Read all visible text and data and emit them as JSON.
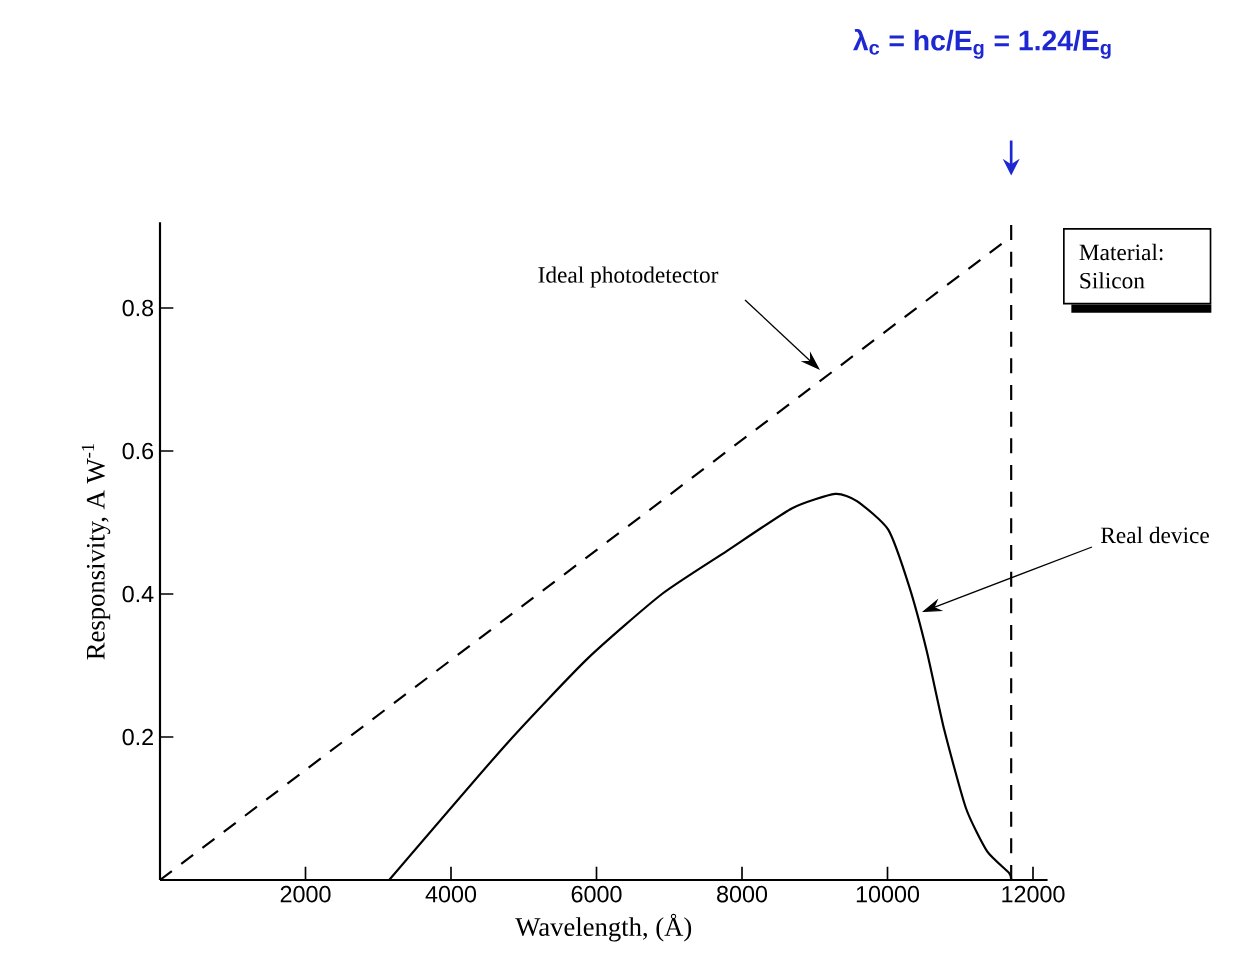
{
  "chart_data": {
    "type": "line",
    "xlabel": "Wavelength, (Å)",
    "ylabel": "Responsivity, A W$^{-1}$",
    "xlim": [
      0,
      12200
    ],
    "ylim": [
      0,
      0.92
    ],
    "xticks": [
      2000,
      4000,
      6000,
      8000,
      10000,
      12000
    ],
    "yticks": [
      0.2,
      0.4,
      0.6,
      0.8
    ],
    "series": [
      {
        "color": "#000000",
        "line_style": "dashed",
        "x": [
          0,
          11700
        ],
        "values": [
          0,
          0.9
        ]
      },
      {
        "color": "#000000",
        "line_style": "solid",
        "x": [
          3150,
          4760,
          5880,
          6900,
          7790,
          8690,
          9280,
          9580,
          10010,
          10300,
          10540,
          10780,
          11080,
          11370,
          11670,
          11700
        ],
        "values": [
          0,
          0.19,
          0.31,
          0.4,
          0.46,
          0.52,
          0.54,
          0.53,
          0.49,
          0.41,
          0.32,
          0.21,
          0.1,
          0.04,
          0.01,
          0
        ]
      }
    ],
    "ref_lines": [
      {
        "axis": "x",
        "value": 11700,
        "line_style": "dashed",
        "color": "#000000"
      }
    ],
    "annotations": [
      "λ$_{c}$ = hc/E$_{g}$ = 1.24/E$_{g}$",
      "Ideal photodetector",
      "Real device",
      "Material: Silicon"
    ]
  }
}
